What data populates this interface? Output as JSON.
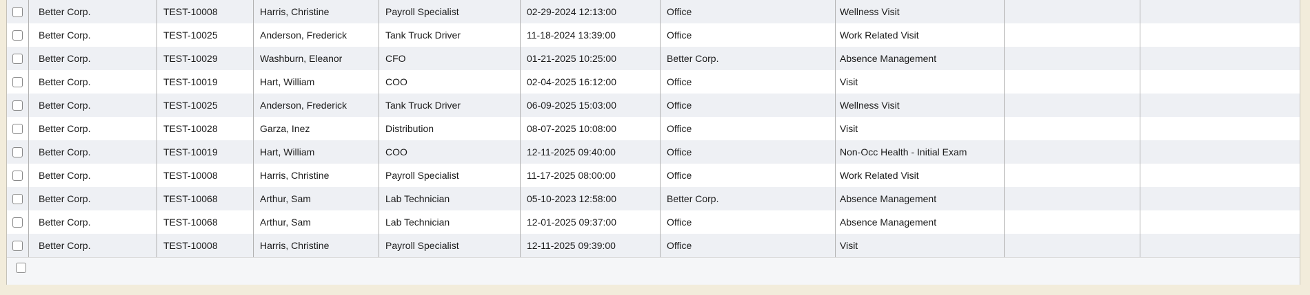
{
  "page": {
    "background_color": "#f2ecdb"
  },
  "table": {
    "column_keys": [
      "company",
      "employee_id",
      "employee_name",
      "job_title",
      "scheduled_datetime",
      "location",
      "visit_type",
      "extra_1",
      "extra_2"
    ],
    "rows": [
      {
        "company": "Better Corp.",
        "employee_id": "TEST-10008",
        "employee_name": "Harris, Christine",
        "job_title": "Payroll Specialist",
        "scheduled_datetime": "02-29-2024 12:13:00",
        "location": "Office",
        "visit_type": "Wellness Visit",
        "extra_1": "",
        "extra_2": ""
      },
      {
        "company": "Better Corp.",
        "employee_id": "TEST-10025",
        "employee_name": "Anderson, Frederick",
        "job_title": "Tank Truck Driver",
        "scheduled_datetime": "11-18-2024 13:39:00",
        "location": "Office",
        "visit_type": "Work Related Visit",
        "extra_1": "",
        "extra_2": ""
      },
      {
        "company": "Better Corp.",
        "employee_id": "TEST-10029",
        "employee_name": "Washburn, Eleanor",
        "job_title": "CFO",
        "scheduled_datetime": "01-21-2025 10:25:00",
        "location": "Better Corp.",
        "visit_type": "Absence Management",
        "extra_1": "",
        "extra_2": ""
      },
      {
        "company": "Better Corp.",
        "employee_id": "TEST-10019",
        "employee_name": "Hart, William",
        "job_title": "COO",
        "scheduled_datetime": "02-04-2025 16:12:00",
        "location": "Office",
        "visit_type": "Visit",
        "extra_1": "",
        "extra_2": ""
      },
      {
        "company": "Better Corp.",
        "employee_id": "TEST-10025",
        "employee_name": "Anderson, Frederick",
        "job_title": "Tank Truck Driver",
        "scheduled_datetime": "06-09-2025 15:03:00",
        "location": "Office",
        "visit_type": "Wellness Visit",
        "extra_1": "",
        "extra_2": ""
      },
      {
        "company": "Better Corp.",
        "employee_id": "TEST-10028",
        "employee_name": "Garza, Inez",
        "job_title": "Distribution",
        "scheduled_datetime": "08-07-2025 10:08:00",
        "location": "Office",
        "visit_type": "Visit",
        "extra_1": "",
        "extra_2": ""
      },
      {
        "company": "Better Corp.",
        "employee_id": "TEST-10019",
        "employee_name": "Hart, William",
        "job_title": "COO",
        "scheduled_datetime": "12-11-2025 09:40:00",
        "location": "Office",
        "visit_type": "Non-Occ Health - Initial Exam",
        "extra_1": "",
        "extra_2": ""
      },
      {
        "company": "Better Corp.",
        "employee_id": "TEST-10008",
        "employee_name": "Harris, Christine",
        "job_title": "Payroll Specialist",
        "scheduled_datetime": "11-17-2025 08:00:00",
        "location": "Office",
        "visit_type": "Work Related Visit",
        "extra_1": "",
        "extra_2": ""
      },
      {
        "company": "Better Corp.",
        "employee_id": "TEST-10068",
        "employee_name": "Arthur, Sam",
        "job_title": "Lab Technician",
        "scheduled_datetime": "05-10-2023 12:58:00",
        "location": "Better Corp.",
        "visit_type": "Absence Management",
        "extra_1": "",
        "extra_2": ""
      },
      {
        "company": "Better Corp.",
        "employee_id": "TEST-10068",
        "employee_name": "Arthur, Sam",
        "job_title": "Lab Technician",
        "scheduled_datetime": "12-01-2025 09:37:00",
        "location": "Office",
        "visit_type": "Absence Management",
        "extra_1": "",
        "extra_2": ""
      },
      {
        "company": "Better Corp.",
        "employee_id": "TEST-10008",
        "employee_name": "Harris, Christine",
        "job_title": "Payroll Specialist",
        "scheduled_datetime": "12-11-2025 09:39:00",
        "location": "Office",
        "visit_type": "Visit",
        "extra_1": "",
        "extra_2": ""
      }
    ],
    "checkboxes_checked": false,
    "footer": {
      "select_checkbox_checked": false
    },
    "colors": {
      "odd_row_background": "#eef0f4",
      "even_row_background": "#ffffff",
      "column_border": "#b0b0b0",
      "outer_border": "#c5c2b8",
      "footer_background": "#f5f6f8"
    }
  }
}
